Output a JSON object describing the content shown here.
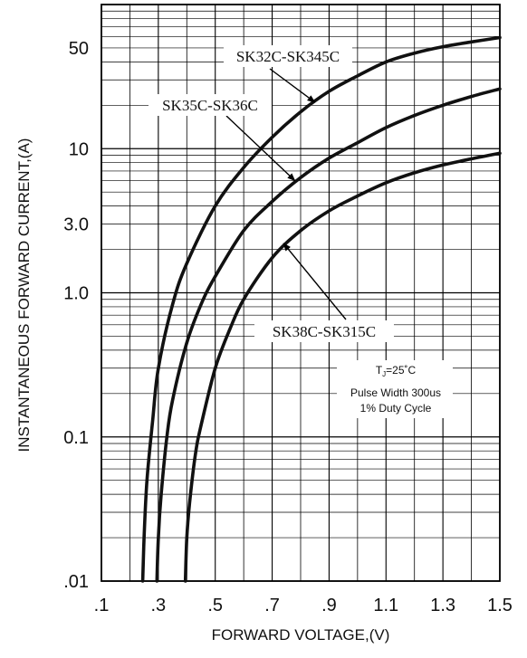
{
  "chart_data": {
    "type": "line",
    "xlabel": "FORWARD VOLTAGE,(V)",
    "ylabel": "INSTANTANEOUS FORWARD CURRENT,(A)",
    "xlim": [
      0.1,
      1.5
    ],
    "ylim": [
      0.01,
      100
    ],
    "y_scale": "log",
    "grid": true,
    "x_ticks": [
      {
        "value": 0.1,
        "label": ".1"
      },
      {
        "value": 0.3,
        "label": ".3"
      },
      {
        "value": 0.5,
        "label": ".5"
      },
      {
        "value": 0.7,
        "label": ".7"
      },
      {
        "value": 0.9,
        "label": ".9"
      },
      {
        "value": 1.1,
        "label": "1.1"
      },
      {
        "value": 1.3,
        "label": "1.3"
      },
      {
        "value": 1.5,
        "label": "1.5"
      }
    ],
    "y_ticks": [
      {
        "value": 0.01,
        "label": ".01"
      },
      {
        "value": 0.1,
        "label": "0.1"
      },
      {
        "value": 1.0,
        "label": "1.0"
      },
      {
        "value": 3.0,
        "label": "3.0"
      },
      {
        "value": 10,
        "label": "10"
      },
      {
        "value": 50,
        "label": "50"
      }
    ],
    "series": [
      {
        "name": "SK32C-SK345C",
        "x": [
          0.245,
          0.25,
          0.26,
          0.28,
          0.3,
          0.35,
          0.4,
          0.5,
          0.6,
          0.7,
          0.8,
          0.9,
          1.0,
          1.1,
          1.2,
          1.3,
          1.4,
          1.5
        ],
        "y": [
          0.01,
          0.02,
          0.05,
          0.13,
          0.3,
          0.83,
          1.6,
          4.0,
          7.4,
          12.0,
          18.0,
          25.0,
          32.0,
          40.0,
          46.0,
          51.0,
          55.0,
          59.0
        ]
      },
      {
        "name": "SK35C-SK36C",
        "x": [
          0.295,
          0.3,
          0.31,
          0.33,
          0.35,
          0.4,
          0.45,
          0.5,
          0.6,
          0.7,
          0.8,
          0.9,
          1.0,
          1.1,
          1.2,
          1.3,
          1.4,
          1.5
        ],
        "y": [
          0.01,
          0.02,
          0.04,
          0.1,
          0.18,
          0.45,
          0.83,
          1.3,
          2.7,
          4.3,
          6.3,
          8.6,
          11.0,
          14.0,
          17.0,
          20.0,
          23.0,
          26.0
        ]
      },
      {
        "name": "SK38C-SK315C",
        "x": [
          0.395,
          0.4,
          0.41,
          0.43,
          0.45,
          0.5,
          0.55,
          0.6,
          0.7,
          0.8,
          0.9,
          1.0,
          1.1,
          1.2,
          1.3,
          1.4,
          1.5
        ],
        "y": [
          0.01,
          0.02,
          0.035,
          0.075,
          0.12,
          0.3,
          0.55,
          0.9,
          1.75,
          2.7,
          3.7,
          4.7,
          5.8,
          6.8,
          7.7,
          8.5,
          9.3
        ]
      }
    ],
    "annotations": [
      {
        "text": "SK32C-SK345C",
        "series": 0,
        "arrow_to": {
          "x": 0.85,
          "y": 21
        }
      },
      {
        "text": "SK35C-SK36C",
        "series": 1,
        "arrow_to": {
          "x": 0.78,
          "y": 6.0
        }
      },
      {
        "text": "SK38C-SK315C",
        "series": 2,
        "arrow_to": {
          "x": 0.74,
          "y": 2.2
        }
      }
    ],
    "notes": {
      "temp_base": "T",
      "temp_sub": "J",
      "temp_rest": "=25˚C",
      "pulse": "Pulse Width 300us",
      "duty": "1% Duty Cycle"
    }
  }
}
